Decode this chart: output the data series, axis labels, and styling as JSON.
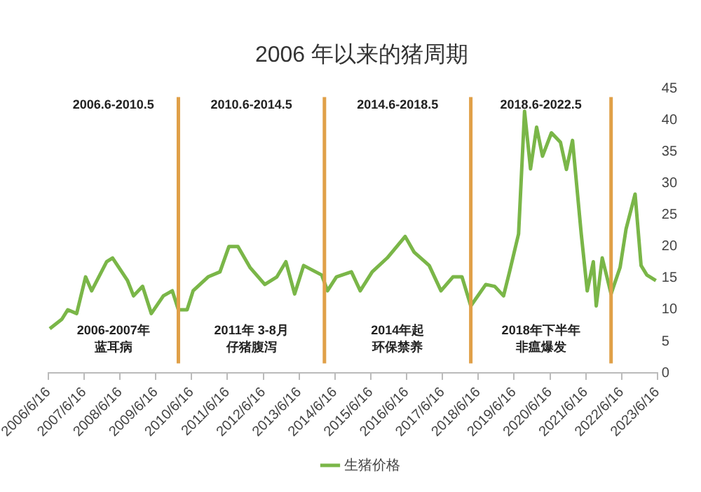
{
  "chart_data": {
    "type": "line",
    "title": "2006 年以来的猪周期",
    "x": [
      "2006-07",
      "2006-11",
      "2007-01",
      "2007-04",
      "2007-07",
      "2007-09",
      "2008-02",
      "2008-04",
      "2008-09",
      "2008-11",
      "2009-02",
      "2009-05",
      "2009-09",
      "2009-12",
      "2010-02",
      "2010-05",
      "2010-07",
      "2010-12",
      "2011-04",
      "2011-07",
      "2011-10",
      "2012-02",
      "2012-07",
      "2012-11",
      "2013-02",
      "2013-05",
      "2013-08",
      "2014-02",
      "2014-04",
      "2014-07",
      "2014-12",
      "2015-03",
      "2015-07",
      "2015-12",
      "2016-06",
      "2016-09",
      "2017-02",
      "2017-06",
      "2017-10",
      "2018-01",
      "2018-04",
      "2018-09",
      "2018-12",
      "2019-03",
      "2019-05",
      "2019-08",
      "2019-10",
      "2019-12",
      "2020-02",
      "2020-04",
      "2020-07",
      "2020-10",
      "2020-12",
      "2021-02",
      "2021-05",
      "2021-07",
      "2021-09",
      "2021-10",
      "2021-12",
      "2022-03",
      "2022-06",
      "2022-08",
      "2022-11",
      "2023-01",
      "2023-03",
      "2023-06"
    ],
    "series": [
      {
        "name": "生猪价格",
        "color": "#7ab648",
        "values": [
          7,
          8.5,
          10,
          9.4,
          15.2,
          13,
          17.6,
          18.2,
          14.6,
          12.2,
          13.7,
          9.4,
          12.2,
          13,
          10,
          10,
          13,
          15.2,
          16,
          20,
          20,
          16.7,
          14,
          15.2,
          17.6,
          12.5,
          17,
          15.5,
          13,
          15.2,
          16,
          13,
          16,
          18.2,
          21.6,
          19.1,
          17,
          13,
          15.2,
          15.2,
          10.6,
          14,
          13.7,
          12.2,
          16,
          22,
          41.4,
          32.3,
          38.9,
          34.3,
          38,
          36.5,
          32.2,
          36.8,
          22,
          13,
          17.6,
          10.6,
          18.2,
          12.5,
          16.7,
          22.8,
          28.3,
          17,
          15.5,
          14.6
        ]
      }
    ],
    "xlim": [
      "2006-06-16",
      "2023-06-16"
    ],
    "xticks": [
      {
        "value": "2006-06-16",
        "label": "2006/6/16"
      },
      {
        "value": "2007-06-16",
        "label": "2007/6/16"
      },
      {
        "value": "2008-06-16",
        "label": "2008/6/16"
      },
      {
        "value": "2009-06-16",
        "label": "2009/6/16"
      },
      {
        "value": "2010-06-16",
        "label": "2010/6/16"
      },
      {
        "value": "2011-06-16",
        "label": "2011/6/16"
      },
      {
        "value": "2012-06-16",
        "label": "2012/6/16"
      },
      {
        "value": "2013-06-16",
        "label": "2013/6/16"
      },
      {
        "value": "2014-06-16",
        "label": "2014/6/16"
      },
      {
        "value": "2015-06-16",
        "label": "2015/6/16"
      },
      {
        "value": "2016-06-16",
        "label": "2016/6/16"
      },
      {
        "value": "2017-06-16",
        "label": "2017/6/16"
      },
      {
        "value": "2018-06-16",
        "label": "2018/6/16"
      },
      {
        "value": "2019-06-16",
        "label": "2019/6/16"
      },
      {
        "value": "2020-06-16",
        "label": "2020/6/16"
      },
      {
        "value": "2021-06-16",
        "label": "2021/6/16"
      },
      {
        "value": "2022-06-16",
        "label": "2022/6/16"
      },
      {
        "value": "2023-06-16",
        "label": "2023/6/16"
      }
    ],
    "ylim": [
      0,
      45
    ],
    "yticks": [
      0,
      5,
      10,
      15,
      20,
      25,
      30,
      35,
      40,
      45
    ],
    "ref_lines": [
      {
        "axis": "x",
        "value": "2010-02",
        "color": "#e0a048"
      },
      {
        "axis": "x",
        "value": "2014-03",
        "color": "#e0a048"
      },
      {
        "axis": "x",
        "value": "2018-04",
        "color": "#e0a048"
      },
      {
        "axis": "x",
        "value": "2022-03",
        "color": "#e0a048"
      }
    ],
    "annotations": [
      "2006.6-2010.5",
      "2010.6-2014.5",
      "2014.6-2018.5",
      "2018.6-2022.5",
      "2006-2007年",
      "蓝耳病",
      "2011年 3-8月",
      "仔猪腹泻",
      "2014年起",
      "环保禁养",
      "2018年下半年",
      "非瘟爆发"
    ],
    "grid": false,
    "legend": "bottom",
    "marker": "none",
    "line_style": "solid"
  }
}
